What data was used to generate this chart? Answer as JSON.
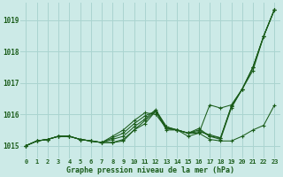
{
  "title": "Graphe pression niveau de la mer (hPa)",
  "bg_color": "#cceae7",
  "grid_color": "#aad4d0",
  "line_color": "#1a5c1a",
  "xlim": [
    -0.5,
    23.5
  ],
  "ylim": [
    1014.6,
    1019.55
  ],
  "yticks": [
    1015,
    1016,
    1017,
    1018,
    1019
  ],
  "xtick_labels": [
    "0",
    "1",
    "2",
    "3",
    "4",
    "5",
    "6",
    "7",
    "8",
    "9",
    "10",
    "11",
    "12",
    "13",
    "14",
    "15",
    "16",
    "17",
    "18",
    "19",
    "20",
    "21",
    "22",
    "23"
  ],
  "series": [
    [
      1015.0,
      1015.15,
      1015.2,
      1015.3,
      1015.3,
      1015.2,
      1015.15,
      1015.1,
      1015.1,
      1015.15,
      1015.5,
      1015.7,
      1016.1,
      1015.5,
      1015.5,
      1015.4,
      1015.4,
      1016.3,
      1016.2,
      1016.3,
      1016.8,
      1017.4,
      1018.5,
      1019.35
    ],
    [
      1015.0,
      1015.15,
      1015.2,
      1015.3,
      1015.3,
      1015.2,
      1015.15,
      1015.1,
      1015.2,
      1015.3,
      1015.6,
      1015.85,
      1016.15,
      1015.6,
      1015.5,
      1015.4,
      1015.45,
      1015.35,
      1015.25,
      1016.25,
      1016.8,
      1017.5,
      1018.5,
      1019.35
    ],
    [
      1015.0,
      1015.15,
      1015.2,
      1015.3,
      1015.3,
      1015.2,
      1015.15,
      1015.1,
      1015.25,
      1015.4,
      1015.7,
      1015.95,
      1016.1,
      1015.6,
      1015.5,
      1015.4,
      1015.5,
      1015.3,
      1015.25,
      1016.25,
      1016.8,
      1017.5,
      1018.5,
      1019.35
    ],
    [
      1015.0,
      1015.15,
      1015.2,
      1015.3,
      1015.3,
      1015.2,
      1015.15,
      1015.1,
      1015.3,
      1015.5,
      1015.8,
      1016.05,
      1016.0,
      1015.55,
      1015.5,
      1015.4,
      1015.55,
      1015.3,
      1015.2,
      1016.2,
      1016.8,
      1017.5,
      1018.5,
      1019.35
    ],
    [
      1015.0,
      1015.15,
      1015.2,
      1015.3,
      1015.3,
      1015.2,
      1015.15,
      1015.1,
      1015.1,
      1015.2,
      1015.5,
      1015.8,
      1016.1,
      1015.55,
      1015.5,
      1015.3,
      1015.4,
      1015.2,
      1015.15,
      1015.15,
      1015.3,
      1015.5,
      1015.65,
      1016.3
    ]
  ],
  "marker": "+"
}
